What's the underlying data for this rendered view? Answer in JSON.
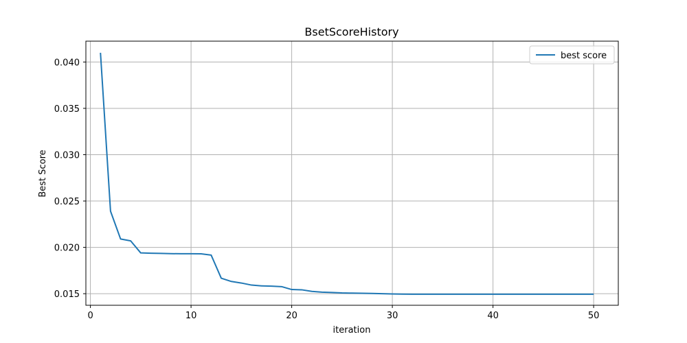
{
  "chart_data": {
    "type": "line",
    "title": "BsetScoreHistory",
    "xlabel": "iteration",
    "ylabel": "Best Score",
    "xlim": [
      -0.45,
      52.45
    ],
    "ylim": [
      0.01375,
      0.04225
    ],
    "xticks": [
      0,
      10,
      20,
      30,
      40,
      50
    ],
    "xtick_labels": [
      "0",
      "10",
      "20",
      "30",
      "40",
      "50"
    ],
    "yticks": [
      0.015,
      0.02,
      0.025,
      0.03,
      0.035,
      0.04
    ],
    "ytick_labels": [
      "0.015",
      "0.020",
      "0.025",
      "0.030",
      "0.035",
      "0.040"
    ],
    "grid": true,
    "legend_position": "top-right",
    "colors": {
      "series": "#1f77b4",
      "grid": "#b0b0b0",
      "axis": "#000000"
    },
    "series": [
      {
        "name": "best score",
        "x": [
          1,
          2,
          3,
          4,
          5,
          6,
          7,
          8,
          9,
          10,
          11,
          12,
          13,
          14,
          15,
          16,
          17,
          18,
          19,
          20,
          21,
          22,
          23,
          24,
          25,
          26,
          27,
          28,
          29,
          30,
          31,
          32,
          33,
          34,
          35,
          36,
          37,
          38,
          39,
          40,
          41,
          42,
          43,
          44,
          45,
          46,
          47,
          48,
          49,
          50
        ],
        "y": [
          0.041,
          0.0239,
          0.0209,
          0.0207,
          0.0194,
          0.01937,
          0.01935,
          0.01932,
          0.01931,
          0.01931,
          0.0193,
          0.01916,
          0.01667,
          0.01632,
          0.01615,
          0.01593,
          0.01584,
          0.01581,
          0.01576,
          0.01545,
          0.01542,
          0.01525,
          0.01517,
          0.01513,
          0.01508,
          0.01506,
          0.01505,
          0.01503,
          0.015,
          0.01497,
          0.01495,
          0.01494,
          0.01494,
          0.01494,
          0.01494,
          0.01494,
          0.01494,
          0.01494,
          0.01494,
          0.01494,
          0.01494,
          0.01494,
          0.01494,
          0.01494,
          0.01494,
          0.01494,
          0.01494,
          0.01494,
          0.01494,
          0.01494
        ]
      }
    ]
  }
}
